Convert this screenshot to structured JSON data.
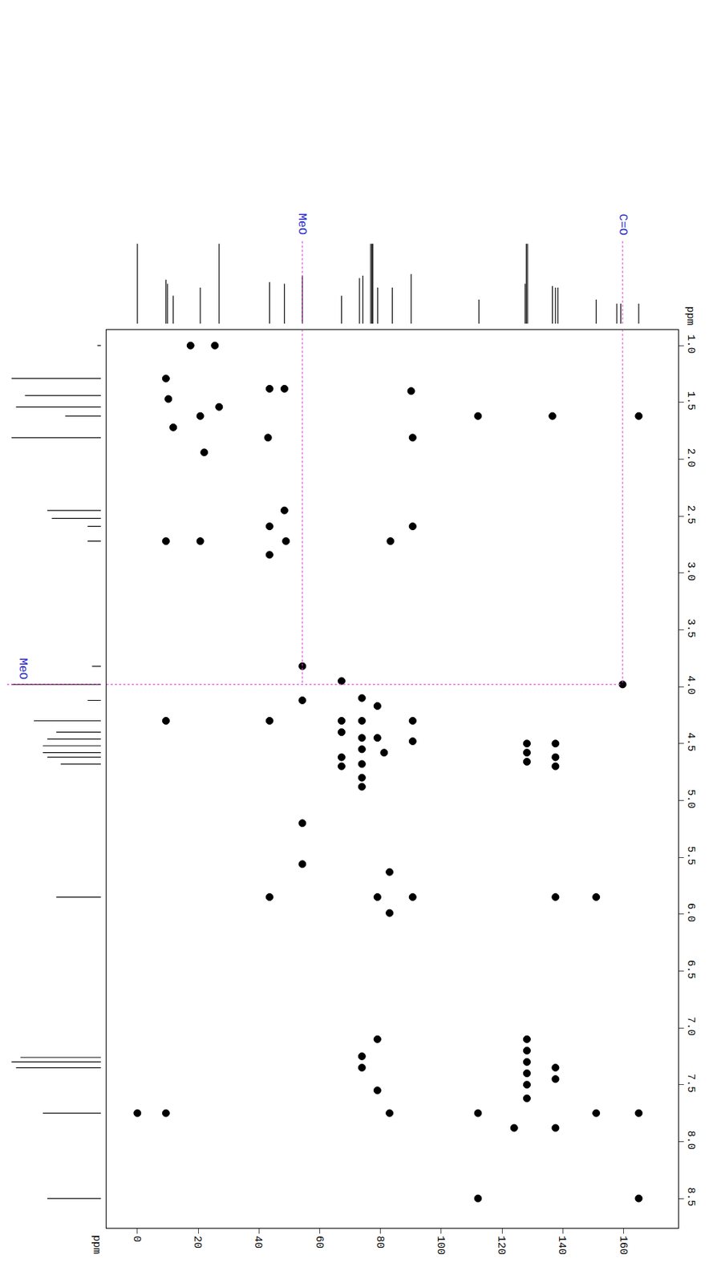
{
  "chart_data": {
    "type": "hmbc",
    "x_label": "ppm",
    "y_label": "ppm",
    "xlim": [
      -10.2,
      178
    ],
    "xticks": [
      0,
      20,
      40,
      60,
      80,
      100,
      120,
      140,
      160
    ],
    "ylim": [
      8.76,
      0.86
    ],
    "yticks": [
      {
        "value": 1,
        "label": "1.0"
      },
      1.5,
      {
        "value": 2,
        "label": "2.0"
      },
      2.5,
      {
        "value": 3,
        "label": "3.0"
      },
      3.5,
      {
        "value": 4,
        "label": "4.0"
      },
      4.5,
      {
        "value": 5,
        "label": "5.0"
      },
      5.5,
      {
        "value": 6,
        "label": "6.0"
      },
      6.5,
      {
        "value": 7,
        "label": "7.0"
      },
      7.5,
      {
        "value": 8,
        "label": "8.0"
      },
      8.5
    ],
    "grid": false,
    "color": "#000000",
    "marker": "circle",
    "x": [
      17.5,
      25.5,
      9.4,
      10.2,
      11.8,
      20.7,
      22.0,
      26.9,
      43.5,
      48.4,
      43.0,
      90.1,
      90.6,
      112.1,
      136.6,
      165.0,
      9.4,
      20.7,
      83.3,
      43.5,
      48.4,
      48.9,
      43.5,
      90.6,
      54.3,
      67.2,
      159.7,
      54.3,
      73.9,
      79.0,
      9.4,
      43.5,
      67.2,
      73.9,
      90.6,
      67.2,
      73.9,
      79.0,
      90.6,
      73.9,
      81.2,
      67.2,
      73.9,
      67.2,
      73.9,
      73.9,
      128.2,
      128.2,
      128.2,
      137.6,
      137.6,
      137.6,
      54.3,
      54.3,
      83.0,
      43.5,
      79.0,
      90.6,
      137.6,
      151.0,
      83.0,
      79.0,
      73.9,
      73.9,
      79.0,
      128.2,
      128.2,
      128.2,
      128.2,
      128.2,
      128.2,
      137.6,
      137.6,
      137.6,
      124.0,
      0.0,
      9.4,
      83.0,
      112.1,
      151.0,
      165.0,
      112.1,
      165.0
    ],
    "y": [
      1.0,
      1.0,
      1.29,
      1.47,
      1.72,
      1.62,
      1.94,
      1.54,
      1.38,
      1.38,
      1.81,
      1.4,
      1.81,
      1.62,
      1.62,
      1.62,
      2.72,
      2.72,
      2.72,
      2.59,
      2.45,
      2.72,
      2.84,
      2.59,
      3.82,
      3.95,
      3.98,
      4.12,
      4.1,
      4.17,
      4.3,
      4.3,
      4.3,
      4.3,
      4.3,
      4.4,
      4.45,
      4.45,
      4.48,
      4.55,
      4.58,
      4.62,
      4.68,
      4.7,
      4.8,
      4.88,
      4.5,
      4.58,
      4.66,
      4.5,
      4.62,
      4.7,
      5.2,
      5.56,
      5.63,
      5.85,
      5.85,
      5.85,
      5.85,
      5.85,
      5.99,
      7.1,
      7.25,
      7.35,
      7.55,
      7.1,
      7.2,
      7.3,
      7.4,
      7.5,
      7.62,
      7.35,
      7.45,
      7.88,
      7.88,
      7.75,
      7.75,
      7.75,
      7.75,
      7.75,
      7.75,
      8.5,
      8.5
    ],
    "c13_spectrum": {
      "ppm": [
        0.0,
        9.4,
        9.9,
        11.8,
        20.7,
        26.9,
        43.5,
        48.4,
        54.3,
        67.2,
        73.1,
        74.2,
        76.8,
        77.2,
        77.5,
        79.1,
        83.9,
        90.1,
        112.4,
        127.6,
        128.0,
        128.4,
        136.6,
        137.6,
        138.4,
        151.0,
        157.8,
        159.1,
        165.0
      ],
      "intensity": [
        1.0,
        0.55,
        0.5,
        0.35,
        0.45,
        1.0,
        0.52,
        0.5,
        0.6,
        0.35,
        0.57,
        0.6,
        1.0,
        1.0,
        1.0,
        0.45,
        0.45,
        0.62,
        0.3,
        0.5,
        1.0,
        1.0,
        0.47,
        0.45,
        0.45,
        0.3,
        0.25,
        0.25,
        0.25
      ],
      "lim": [
        0,
        1.05
      ]
    },
    "h1_spectrum": {
      "ppm": [
        1.0,
        1.29,
        1.44,
        1.54,
        1.62,
        1.81,
        2.45,
        2.52,
        2.59,
        2.72,
        3.82,
        3.98,
        4.12,
        4.3,
        4.4,
        4.46,
        4.52,
        4.58,
        4.62,
        4.68,
        5.85,
        7.26,
        7.3,
        7.35,
        7.75,
        8.5
      ],
      "intensity": [
        0.04,
        1.0,
        0.85,
        0.95,
        0.4,
        1.0,
        0.6,
        0.55,
        0.15,
        0.15,
        0.1,
        1.0,
        0.15,
        0.75,
        0.5,
        0.6,
        0.65,
        0.65,
        0.6,
        0.45,
        0.5,
        0.9,
        1.0,
        0.95,
        0.65,
        0.6
      ],
      "lim": [
        1.05,
        0
      ]
    },
    "guides": {
      "color": "#dd44dd",
      "y": 3.98,
      "y_label": "MeO",
      "verticals": [
        {
          "x": 54.3,
          "label": "MeO"
        },
        {
          "x": 159.7,
          "label": "C=O"
        }
      ]
    }
  }
}
